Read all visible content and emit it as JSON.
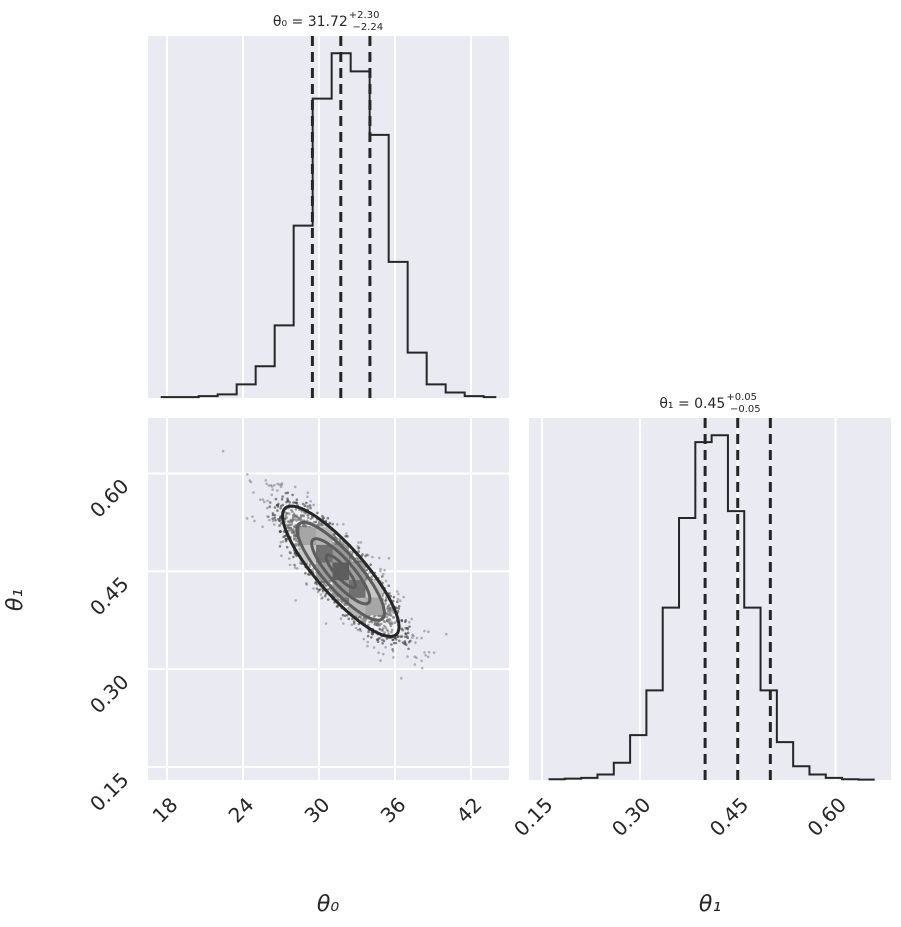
{
  "colors": {
    "panel_bg": "#eaeaf2",
    "grid": "#ffffff",
    "ink": "#262626",
    "points": "#3a3a3a"
  },
  "titles": {
    "theta0": {
      "value": "θ₀ = 31.72",
      "plus": "+2.30",
      "minus": "−2.24"
    },
    "theta1": {
      "value": "θ₁ = 0.45",
      "plus": "+0.05",
      "minus": "−0.05"
    }
  },
  "axes": {
    "xlabel_left": "θ₀",
    "xlabel_right": "θ₁",
    "ylabel": "θ₁"
  },
  "chart_data": [
    {
      "type": "bar",
      "panel": "hist-theta0",
      "parameter": "θ₀",
      "xlim": [
        16.5,
        45
      ],
      "bin_edges": [
        17.5,
        19,
        20.5,
        22,
        23.5,
        25,
        26.5,
        28,
        29.5,
        31,
        32.5,
        34,
        35.5,
        37,
        38.5,
        40,
        41.5,
        43,
        44
      ],
      "counts": [
        0.1,
        0.1,
        0.2,
        0.4,
        1.5,
        3.5,
        8,
        19,
        33,
        38,
        36,
        29,
        15,
        5,
        1.5,
        0.6,
        0.2,
        0.1
      ],
      "quantiles": [
        29.48,
        31.72,
        34.02
      ],
      "ticks": [
        "18",
        "24",
        "30",
        "36",
        "42"
      ],
      "tick_values": [
        18,
        24,
        30,
        36,
        42
      ]
    },
    {
      "type": "bar",
      "panel": "hist-theta1",
      "parameter": "θ₁",
      "xlim": [
        0.13,
        0.685
      ],
      "bin_edges": [
        0.16,
        0.185,
        0.21,
        0.235,
        0.26,
        0.285,
        0.31,
        0.335,
        0.36,
        0.385,
        0.41,
        0.435,
        0.46,
        0.485,
        0.51,
        0.535,
        0.56,
        0.585,
        0.61,
        0.635,
        0.66
      ],
      "counts": [
        0.1,
        0.2,
        0.3,
        0.8,
        2.5,
        6.5,
        13,
        25,
        38,
        49,
        50,
        39,
        25,
        13,
        5.5,
        2,
        0.8,
        0.3,
        0.1,
        0.05
      ],
      "quantiles": [
        0.4,
        0.45,
        0.5
      ],
      "ticks": [
        "0.15",
        "0.30",
        "0.45",
        "0.60"
      ],
      "tick_values": [
        0.15,
        0.3,
        0.45,
        0.6
      ]
    },
    {
      "type": "scatter",
      "panel": "joint-theta0-theta1",
      "x_parameter": "θ₀",
      "y_parameter": "θ₁",
      "xlim": [
        16.5,
        45
      ],
      "ylim": [
        0.13,
        0.685
      ],
      "mean": [
        31.72,
        0.45
      ],
      "std": [
        2.3,
        0.05
      ],
      "correlation": -0.85,
      "xticks": [
        "18",
        "24",
        "30",
        "36",
        "42"
      ],
      "xtick_values": [
        18,
        24,
        30,
        36,
        42
      ],
      "yticks": [
        "0.15",
        "0.30",
        "0.45",
        "0.60"
      ],
      "ytick_values": [
        0.15,
        0.3,
        0.45,
        0.6
      ],
      "contour_levels_sigma": [
        0.5,
        1.0,
        1.5,
        2.0
      ]
    }
  ]
}
